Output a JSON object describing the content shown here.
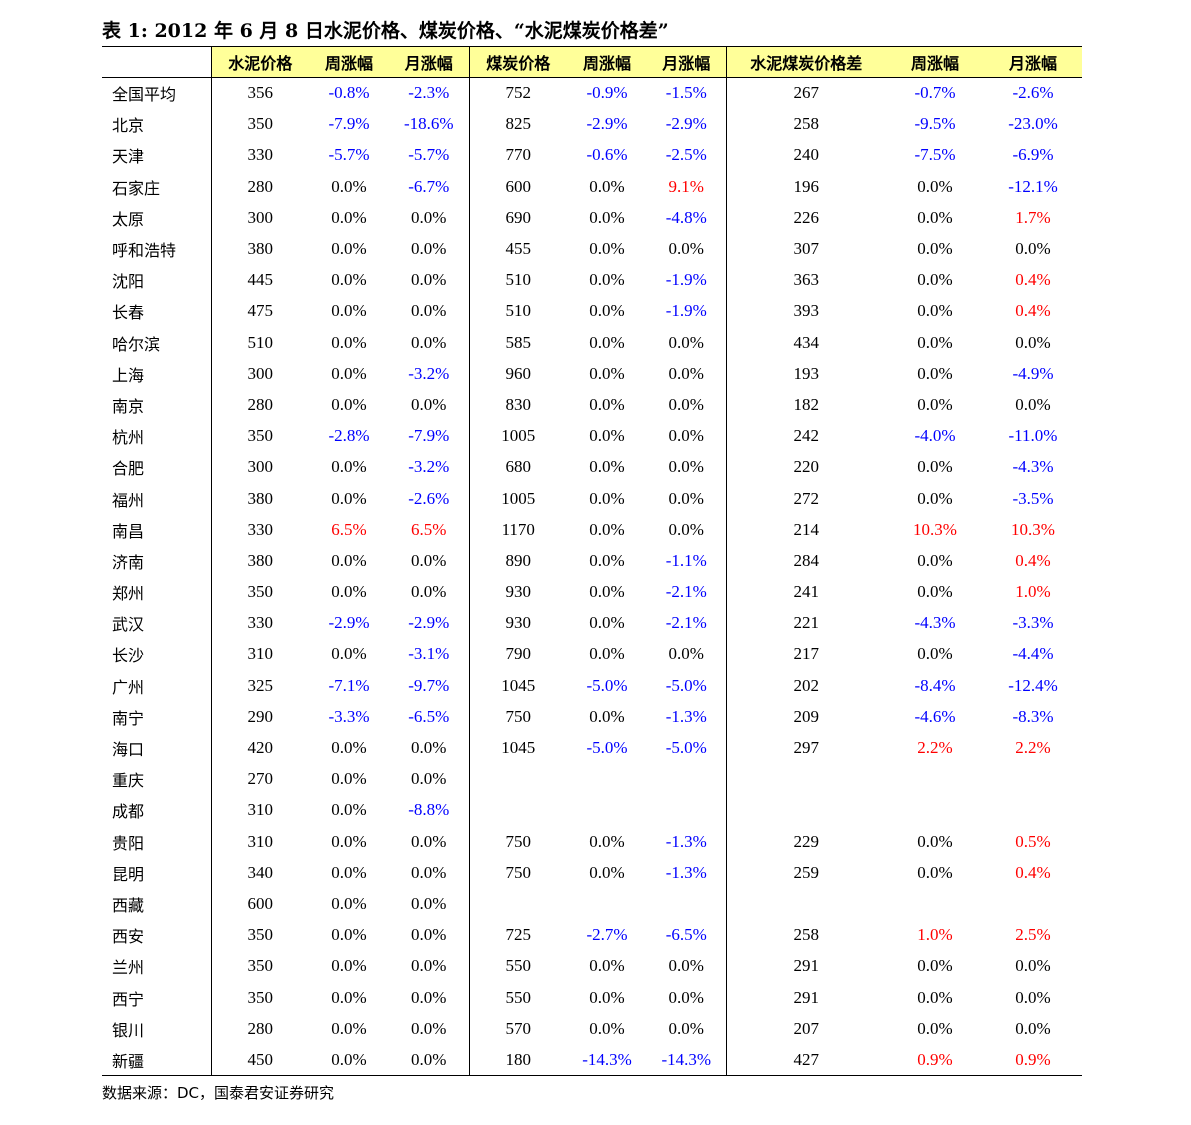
{
  "title": "表 1:  2012 年 6 月 8 日水泥价格、煤炭价格、“水泥煤炭价格差”",
  "headers": [
    "",
    "水泥价格",
    "周涨幅",
    "月涨幅",
    "煤炭价格",
    "周涨幅",
    "月涨幅",
    "水泥煤炭价格差",
    "周涨幅",
    "月涨幅"
  ],
  "rows": [
    [
      "全国平均",
      "356",
      "-0.8%",
      "-2.3%",
      "752",
      "-0.9%",
      "-1.5%",
      "267",
      "-0.7%",
      "-2.6%"
    ],
    [
      "北京",
      "350",
      "-7.9%",
      "-18.6%",
      "825",
      "-2.9%",
      "-2.9%",
      "258",
      "-9.5%",
      "-23.0%"
    ],
    [
      "天津",
      "330",
      "-5.7%",
      "-5.7%",
      "770",
      "-0.6%",
      "-2.5%",
      "240",
      "-7.5%",
      "-6.9%"
    ],
    [
      "石家庄",
      "280",
      "0.0%",
      "-6.7%",
      "600",
      "0.0%",
      "9.1%",
      "196",
      "0.0%",
      "-12.1%"
    ],
    [
      "太原",
      "300",
      "0.0%",
      "0.0%",
      "690",
      "0.0%",
      "-4.8%",
      "226",
      "0.0%",
      "1.7%"
    ],
    [
      "呼和浩特",
      "380",
      "0.0%",
      "0.0%",
      "455",
      "0.0%",
      "0.0%",
      "307",
      "0.0%",
      "0.0%"
    ],
    [
      "沈阳",
      "445",
      "0.0%",
      "0.0%",
      "510",
      "0.0%",
      "-1.9%",
      "363",
      "0.0%",
      "0.4%"
    ],
    [
      "长春",
      "475",
      "0.0%",
      "0.0%",
      "510",
      "0.0%",
      "-1.9%",
      "393",
      "0.0%",
      "0.4%"
    ],
    [
      "哈尔滨",
      "510",
      "0.0%",
      "0.0%",
      "585",
      "0.0%",
      "0.0%",
      "434",
      "0.0%",
      "0.0%"
    ],
    [
      "上海",
      "300",
      "0.0%",
      "-3.2%",
      "960",
      "0.0%",
      "0.0%",
      "193",
      "0.0%",
      "-4.9%"
    ],
    [
      "南京",
      "280",
      "0.0%",
      "0.0%",
      "830",
      "0.0%",
      "0.0%",
      "182",
      "0.0%",
      "0.0%"
    ],
    [
      "杭州",
      "350",
      "-2.8%",
      "-7.9%",
      "1005",
      "0.0%",
      "0.0%",
      "242",
      "-4.0%",
      "-11.0%"
    ],
    [
      "合肥",
      "300",
      "0.0%",
      "-3.2%",
      "680",
      "0.0%",
      "0.0%",
      "220",
      "0.0%",
      "-4.3%"
    ],
    [
      "福州",
      "380",
      "0.0%",
      "-2.6%",
      "1005",
      "0.0%",
      "0.0%",
      "272",
      "0.0%",
      "-3.5%"
    ],
    [
      "南昌",
      "330",
      "6.5%",
      "6.5%",
      "1170",
      "0.0%",
      "0.0%",
      "214",
      "10.3%",
      "10.3%"
    ],
    [
      "济南",
      "380",
      "0.0%",
      "0.0%",
      "890",
      "0.0%",
      "-1.1%",
      "284",
      "0.0%",
      "0.4%"
    ],
    [
      "郑州",
      "350",
      "0.0%",
      "0.0%",
      "930",
      "0.0%",
      "-2.1%",
      "241",
      "0.0%",
      "1.0%"
    ],
    [
      "武汉",
      "330",
      "-2.9%",
      "-2.9%",
      "930",
      "0.0%",
      "-2.1%",
      "221",
      "-4.3%",
      "-3.3%"
    ],
    [
      "长沙",
      "310",
      "0.0%",
      "-3.1%",
      "790",
      "0.0%",
      "0.0%",
      "217",
      "0.0%",
      "-4.4%"
    ],
    [
      "广州",
      "325",
      "-7.1%",
      "-9.7%",
      "1045",
      "-5.0%",
      "-5.0%",
      "202",
      "-8.4%",
      "-12.4%"
    ],
    [
      "南宁",
      "290",
      "-3.3%",
      "-6.5%",
      "750",
      "0.0%",
      "-1.3%",
      "209",
      "-4.6%",
      "-8.3%"
    ],
    [
      "海口",
      "420",
      "0.0%",
      "0.0%",
      "1045",
      "-5.0%",
      "-5.0%",
      "297",
      "2.2%",
      "2.2%"
    ],
    [
      "重庆",
      "270",
      "0.0%",
      "0.0%",
      "",
      "",
      "",
      "",
      "",
      ""
    ],
    [
      "成都",
      "310",
      "0.0%",
      "-8.8%",
      "",
      "",
      "",
      "",
      "",
      ""
    ],
    [
      "贵阳",
      "310",
      "0.0%",
      "0.0%",
      "750",
      "0.0%",
      "-1.3%",
      "229",
      "0.0%",
      "0.5%"
    ],
    [
      "昆明",
      "340",
      "0.0%",
      "0.0%",
      "750",
      "0.0%",
      "-1.3%",
      "259",
      "0.0%",
      "0.4%"
    ],
    [
      "西藏",
      "600",
      "0.0%",
      "0.0%",
      "",
      "",
      "",
      "",
      "",
      ""
    ],
    [
      "西安",
      "350",
      "0.0%",
      "0.0%",
      "725",
      "-2.7%",
      "-6.5%",
      "258",
      "1.0%",
      "2.5%"
    ],
    [
      "兰州",
      "350",
      "0.0%",
      "0.0%",
      "550",
      "0.0%",
      "0.0%",
      "291",
      "0.0%",
      "0.0%"
    ],
    [
      "西宁",
      "350",
      "0.0%",
      "0.0%",
      "550",
      "0.0%",
      "0.0%",
      "291",
      "0.0%",
      "0.0%"
    ],
    [
      "银川",
      "280",
      "0.0%",
      "0.0%",
      "570",
      "0.0%",
      "0.0%",
      "207",
      "0.0%",
      "0.0%"
    ],
    [
      "新疆",
      "450",
      "0.0%",
      "0.0%",
      "180",
      "-14.3%",
      "-14.3%",
      "427",
      "0.9%",
      "0.9%"
    ]
  ],
  "source": "数据来源：DC，国泰君安证券研究",
  "colors": {
    "header_bg": "#ffff99",
    "negative": "#0000ff",
    "positive": "#ff0000",
    "neutral": "#000000"
  }
}
